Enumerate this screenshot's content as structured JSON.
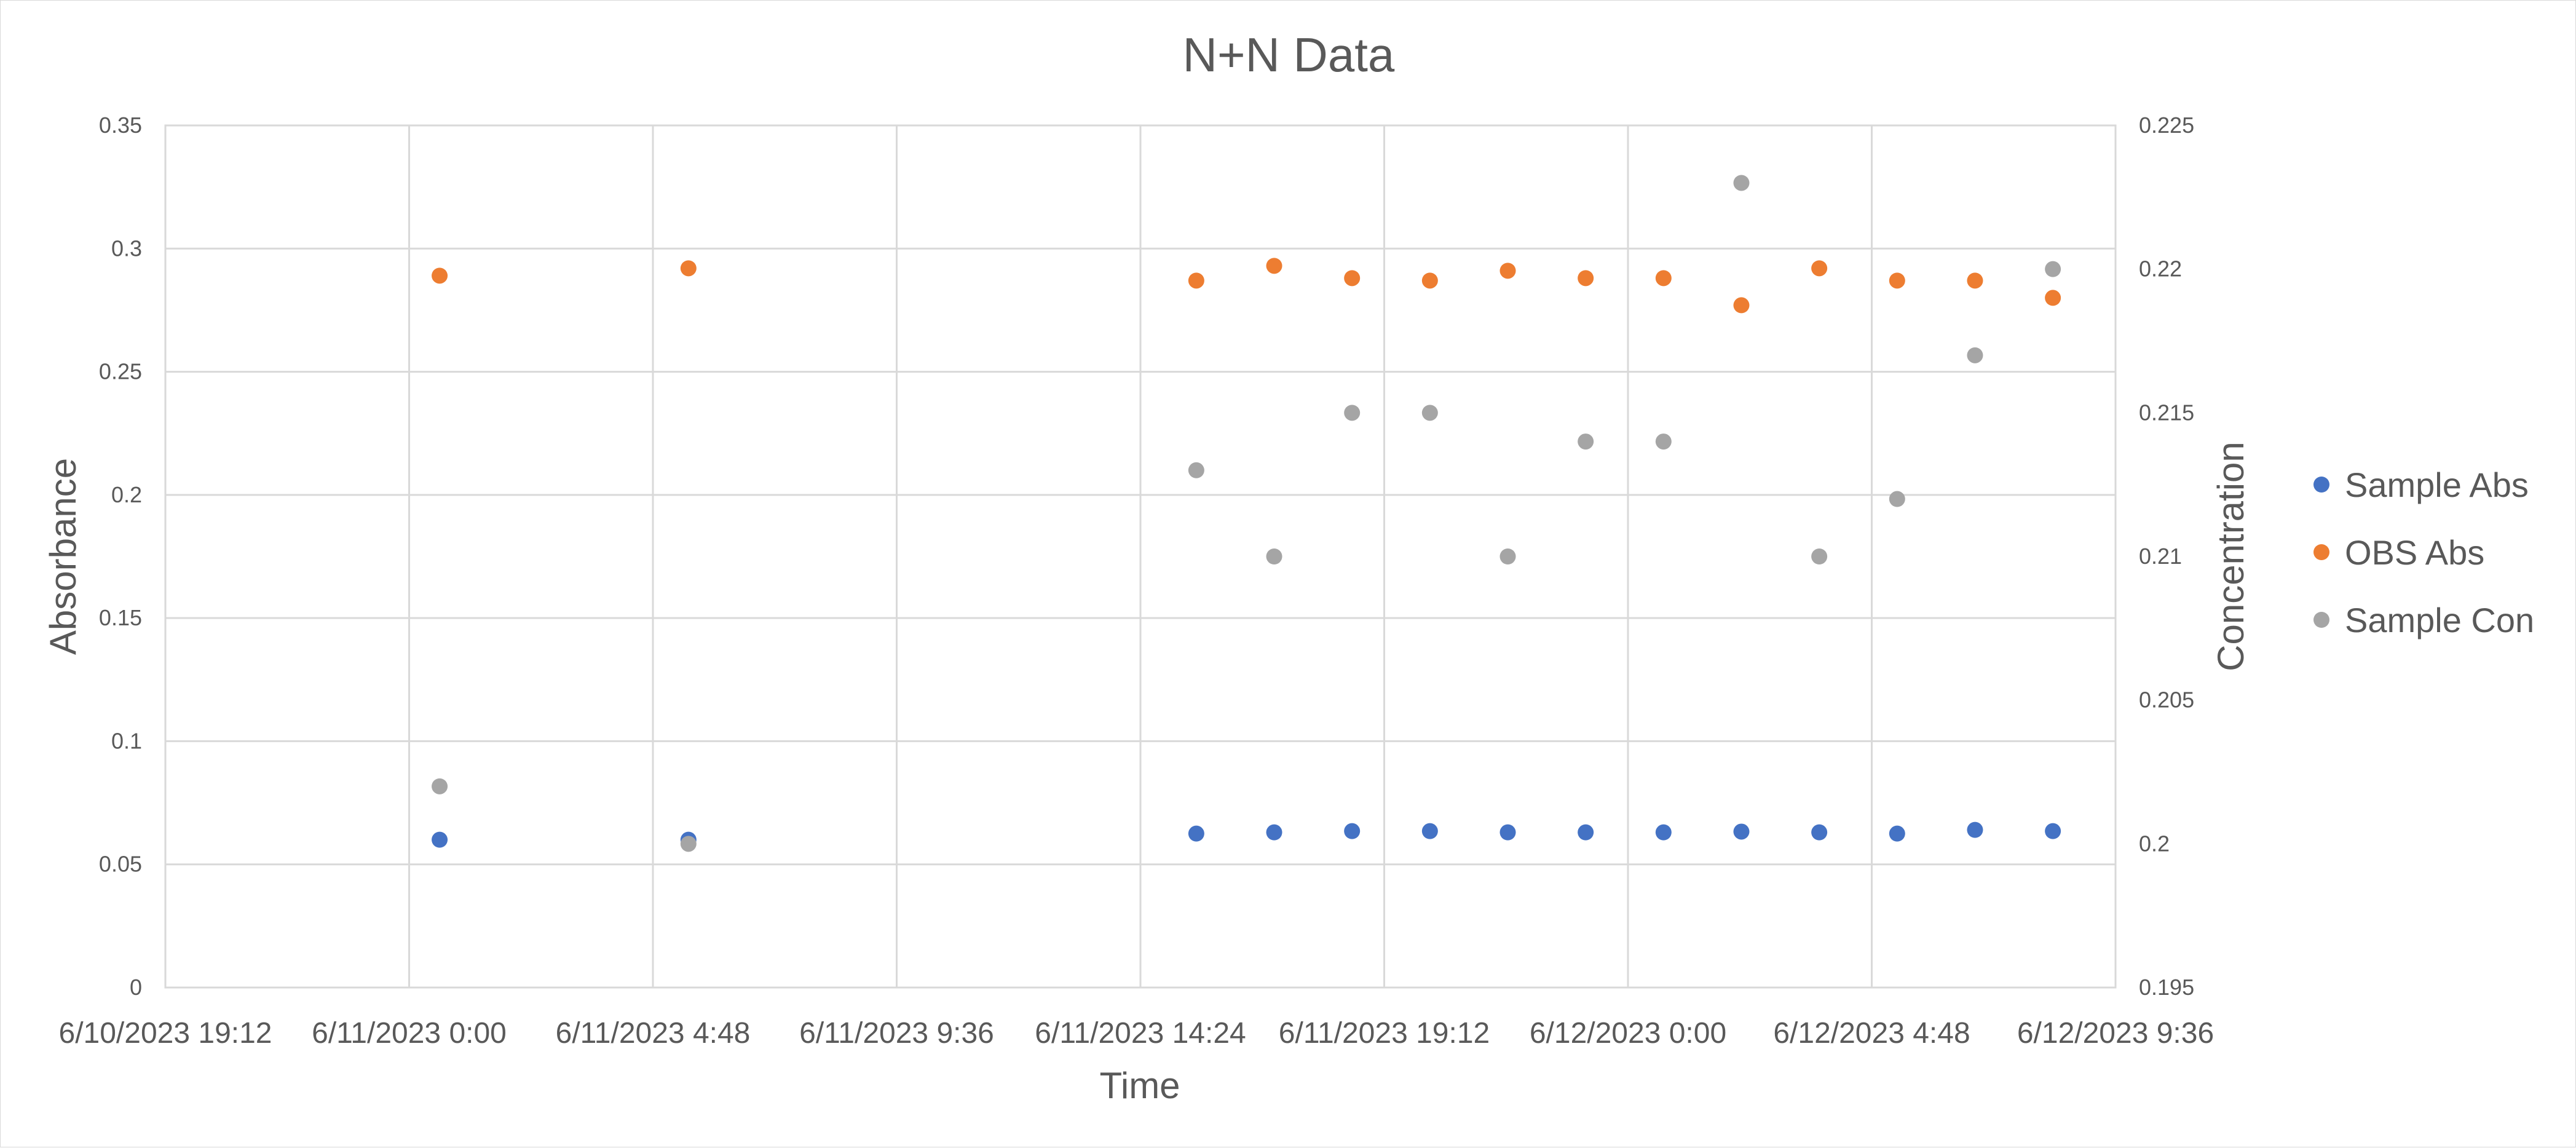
{
  "chart_data": {
    "type": "scatter",
    "title": "N+N Data",
    "xlabel": "Time",
    "ylabel": "Absorbance",
    "y2label": "Concentration",
    "x_tick_labels": [
      "6/10/2023 19:12",
      "6/11/2023 0:00",
      "6/11/2023 4:48",
      "6/11/2023 9:36",
      "6/11/2023 14:24",
      "6/11/2023 19:12",
      "6/12/2023 0:00",
      "6/12/2023 4:48",
      "6/12/2023 9:36"
    ],
    "xlim": [
      "6/10/2023 19:12",
      "6/12/2023 9:36"
    ],
    "x_tick_interval_hours": 4.8,
    "ylim": [
      0,
      0.35
    ],
    "y_ticks": [
      "0",
      "0.05",
      "0.1",
      "0.15",
      "0.2",
      "0.25",
      "0.3",
      "0.35"
    ],
    "y2lim": [
      0.195,
      0.225
    ],
    "y2_ticks": [
      "0.195",
      "0.2",
      "0.205",
      "0.21",
      "0.215",
      "0.22",
      "0.225"
    ],
    "grid": true,
    "legend_position": "right",
    "series": [
      {
        "name": "Sample Abs",
        "axis": "left",
        "color": "#4472c4",
        "x": [
          "6/11/2023 0:36",
          "6/11/2023 5:30",
          "6/11/2023 15:30",
          "6/11/2023 17:02",
          "6/11/2023 18:34",
          "6/11/2023 20:06",
          "6/11/2023 21:38",
          "6/11/2023 23:10",
          "6/12/2023 0:42",
          "6/12/2023 2:14",
          "6/12/2023 3:46",
          "6/12/2023 5:18",
          "6/12/2023 6:50",
          "6/12/2023 8:22"
        ],
        "y": [
          0.06,
          0.06,
          0.0625,
          0.063,
          0.0635,
          0.0635,
          0.063,
          0.063,
          0.063,
          0.0633,
          0.063,
          0.0625,
          0.064,
          0.0635
        ]
      },
      {
        "name": "OBS Abs",
        "axis": "left",
        "color": "#ed7d31",
        "x": [
          "6/11/2023 0:36",
          "6/11/2023 5:30",
          "6/11/2023 15:30",
          "6/11/2023 17:02",
          "6/11/2023 18:34",
          "6/11/2023 20:06",
          "6/11/2023 21:38",
          "6/11/2023 23:10",
          "6/12/2023 0:42",
          "6/12/2023 2:14",
          "6/12/2023 3:46",
          "6/12/2023 5:18",
          "6/12/2023 6:50",
          "6/12/2023 8:22"
        ],
        "y": [
          0.289,
          0.292,
          0.287,
          0.293,
          0.288,
          0.287,
          0.291,
          0.288,
          0.288,
          0.277,
          0.292,
          0.287,
          0.287,
          0.28
        ]
      },
      {
        "name": "Sample Con",
        "axis": "right",
        "color": "#a5a5a5",
        "x": [
          "6/11/2023 0:36",
          "6/11/2023 5:30",
          "6/11/2023 15:30",
          "6/11/2023 17:02",
          "6/11/2023 18:34",
          "6/11/2023 20:06",
          "6/11/2023 21:38",
          "6/11/2023 23:10",
          "6/12/2023 0:42",
          "6/12/2023 2:14",
          "6/12/2023 3:46",
          "6/12/2023 5:18",
          "6/12/2023 6:50",
          "6/12/2023 8:22"
        ],
        "y": [
          0.202,
          0.2,
          0.213,
          0.21,
          0.215,
          0.215,
          0.21,
          0.214,
          0.214,
          0.223,
          0.21,
          0.212,
          0.217,
          0.22
        ]
      }
    ]
  }
}
